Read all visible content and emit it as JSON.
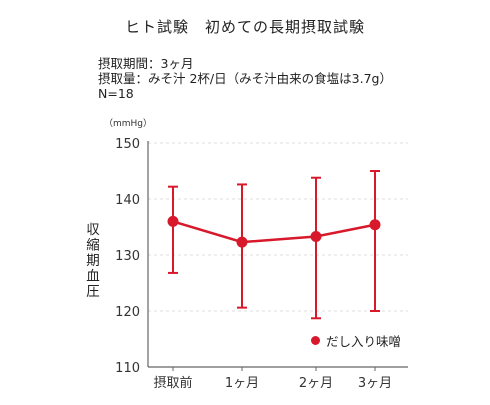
{
  "header": {
    "title": "ヒト試験　初めての長期摂取試験",
    "period": "摂取期間：3ヶ月",
    "intake": "摂取量：みそ汁 2杯/日（みそ汁由来の食塩は3.7g）",
    "n": "N=18"
  },
  "colors": {
    "series": "#d7192b",
    "axis": "#666666",
    "grid": "#dddddd"
  },
  "chart_data": {
    "type": "line",
    "unit": "（mmHg）",
    "ylabel": "収縮期血圧",
    "categories": [
      "摂取前",
      "1ヶ月",
      "2ヶ月",
      "3ヶ月"
    ],
    "ylim": [
      110,
      150
    ],
    "yticks": [
      110,
      120,
      130,
      140,
      150
    ],
    "grid": true,
    "legend_position": "bottom-right",
    "series": [
      {
        "name": "だし入り味噌",
        "values": [
          136.0,
          132.3,
          133.3,
          135.4
        ],
        "error_low": [
          126.8,
          120.6,
          118.7,
          120.0
        ],
        "error_high": [
          142.2,
          142.6,
          143.8,
          145.0
        ]
      }
    ]
  }
}
